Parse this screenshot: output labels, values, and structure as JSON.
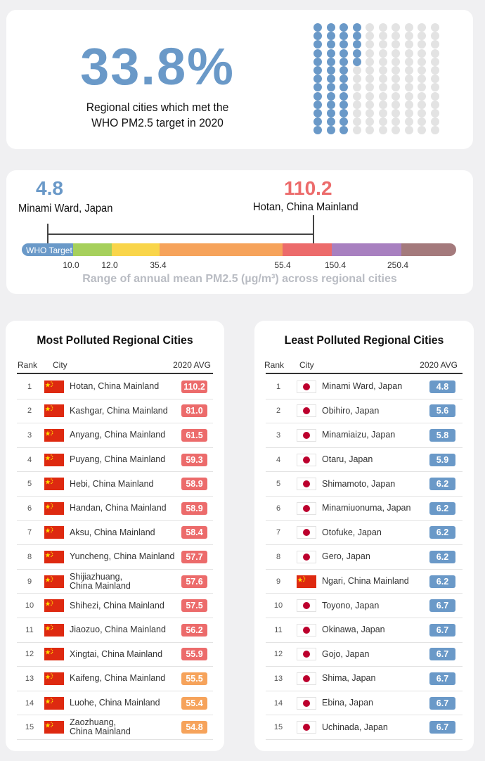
{
  "headline": {
    "percent": "33.8%",
    "caption_line1": "Regional cities which met the",
    "caption_line2": "WHO PM2.5 target in 2020"
  },
  "chart_data": [
    {
      "type": "waffle",
      "rows": 13,
      "cols": 10,
      "filled_fraction": 0.338,
      "filled_color": "#6a99c8",
      "empty_color": "#e3e3e3"
    },
    {
      "type": "range",
      "title": "Range of annual mean PM2.5 (µg/m³) across regional cities",
      "min": {
        "value": "4.8",
        "city": "Minami Ward, Japan",
        "color": "#6a99c8"
      },
      "max": {
        "value": "110.2",
        "city": "Hotan, China Mainland",
        "color": "#ec6b6b"
      },
      "scale_label": "WHO Target",
      "ticks": [
        "10.0",
        "12.0",
        "35.4",
        "55.4",
        "150.4",
        "250.4"
      ],
      "bands": [
        {
          "upper": "10.0",
          "color": "#6a99c8"
        },
        {
          "upper": "12.0",
          "color": "#a6d05c"
        },
        {
          "upper": "35.4",
          "color": "#f9d54a"
        },
        {
          "upper": "55.4",
          "color": "#f6a35b"
        },
        {
          "upper": "150.4",
          "color": "#ec6b6b"
        },
        {
          "upper": "250.4",
          "color": "#a880c0"
        },
        {
          "upper": null,
          "color": "#a47a7c"
        }
      ]
    }
  ],
  "tables": {
    "most": {
      "title": "Most Polluted Regional Cities",
      "headers": {
        "rank": "Rank",
        "city": "City",
        "avg": "2020 AVG"
      },
      "rows": [
        {
          "rank": "1",
          "city": "Hotan, China Mainland",
          "value": "110.2",
          "flag": "china",
          "color": "#ec6b6b"
        },
        {
          "rank": "2",
          "city": "Kashgar, China Mainland",
          "value": "81.0",
          "flag": "china",
          "color": "#ec6b6b"
        },
        {
          "rank": "3",
          "city": "Anyang, China Mainland",
          "value": "61.5",
          "flag": "china",
          "color": "#ec6b6b"
        },
        {
          "rank": "4",
          "city": "Puyang, China Mainland",
          "value": "59.3",
          "flag": "china",
          "color": "#ec6b6b"
        },
        {
          "rank": "5",
          "city": "Hebi, China Mainland",
          "value": "58.9",
          "flag": "china",
          "color": "#ec6b6b"
        },
        {
          "rank": "6",
          "city": "Handan, China Mainland",
          "value": "58.9",
          "flag": "china",
          "color": "#ec6b6b"
        },
        {
          "rank": "7",
          "city": "Aksu, China Mainland",
          "value": "58.4",
          "flag": "china",
          "color": "#ec6b6b"
        },
        {
          "rank": "8",
          "city": "Yuncheng, China Mainland",
          "value": "57.7",
          "flag": "china",
          "color": "#ec6b6b"
        },
        {
          "rank": "9",
          "city": "Shijiazhuang,\nChina Mainland",
          "value": "57.6",
          "flag": "china",
          "color": "#ec6b6b"
        },
        {
          "rank": "10",
          "city": "Shihezi, China Mainland",
          "value": "57.5",
          "flag": "china",
          "color": "#ec6b6b"
        },
        {
          "rank": "11",
          "city": "Jiaozuo, China Mainland",
          "value": "56.2",
          "flag": "china",
          "color": "#ec6b6b"
        },
        {
          "rank": "12",
          "city": "Xingtai, China Mainland",
          "value": "55.9",
          "flag": "china",
          "color": "#ec6b6b"
        },
        {
          "rank": "13",
          "city": "Kaifeng, China Mainland",
          "value": "55.5",
          "flag": "china",
          "color": "#f6a35b"
        },
        {
          "rank": "14",
          "city": "Luohe, China Mainland",
          "value": "55.4",
          "flag": "china",
          "color": "#f6a35b"
        },
        {
          "rank": "15",
          "city": "Zaozhuang,\nChina Mainland",
          "value": "54.8",
          "flag": "china",
          "color": "#f6a35b"
        }
      ]
    },
    "least": {
      "title": "Least Polluted Regional Cities",
      "headers": {
        "rank": "Rank",
        "city": "City",
        "avg": "2020 AVG"
      },
      "rows": [
        {
          "rank": "1",
          "city": "Minami Ward, Japan",
          "value": "4.8",
          "flag": "japan",
          "color": "#6a99c8"
        },
        {
          "rank": "2",
          "city": "Obihiro, Japan",
          "value": "5.6",
          "flag": "japan",
          "color": "#6a99c8"
        },
        {
          "rank": "3",
          "city": "Minamiaizu, Japan",
          "value": "5.8",
          "flag": "japan",
          "color": "#6a99c8"
        },
        {
          "rank": "4",
          "city": "Otaru, Japan",
          "value": "5.9",
          "flag": "japan",
          "color": "#6a99c8"
        },
        {
          "rank": "5",
          "city": "Shimamoto, Japan",
          "value": "6.2",
          "flag": "japan",
          "color": "#6a99c8"
        },
        {
          "rank": "6",
          "city": "Minamiuonuma, Japan",
          "value": "6.2",
          "flag": "japan",
          "color": "#6a99c8"
        },
        {
          "rank": "7",
          "city": "Otofuke, Japan",
          "value": "6.2",
          "flag": "japan",
          "color": "#6a99c8"
        },
        {
          "rank": "8",
          "city": "Gero, Japan",
          "value": "6.2",
          "flag": "japan",
          "color": "#6a99c8"
        },
        {
          "rank": "9",
          "city": "Ngari, China Mainland",
          "value": "6.2",
          "flag": "china",
          "color": "#6a99c8"
        },
        {
          "rank": "10",
          "city": "Toyono, Japan",
          "value": "6.7",
          "flag": "japan",
          "color": "#6a99c8"
        },
        {
          "rank": "11",
          "city": "Okinawa, Japan",
          "value": "6.7",
          "flag": "japan",
          "color": "#6a99c8"
        },
        {
          "rank": "12",
          "city": "Gojo, Japan",
          "value": "6.7",
          "flag": "japan",
          "color": "#6a99c8"
        },
        {
          "rank": "13",
          "city": "Shima, Japan",
          "value": "6.7",
          "flag": "japan",
          "color": "#6a99c8"
        },
        {
          "rank": "14",
          "city": "Ebina, Japan",
          "value": "6.7",
          "flag": "japan",
          "color": "#6a99c8"
        },
        {
          "rank": "15",
          "city": "Uchinada, Japan",
          "value": "6.7",
          "flag": "japan",
          "color": "#6a99c8"
        }
      ]
    }
  }
}
